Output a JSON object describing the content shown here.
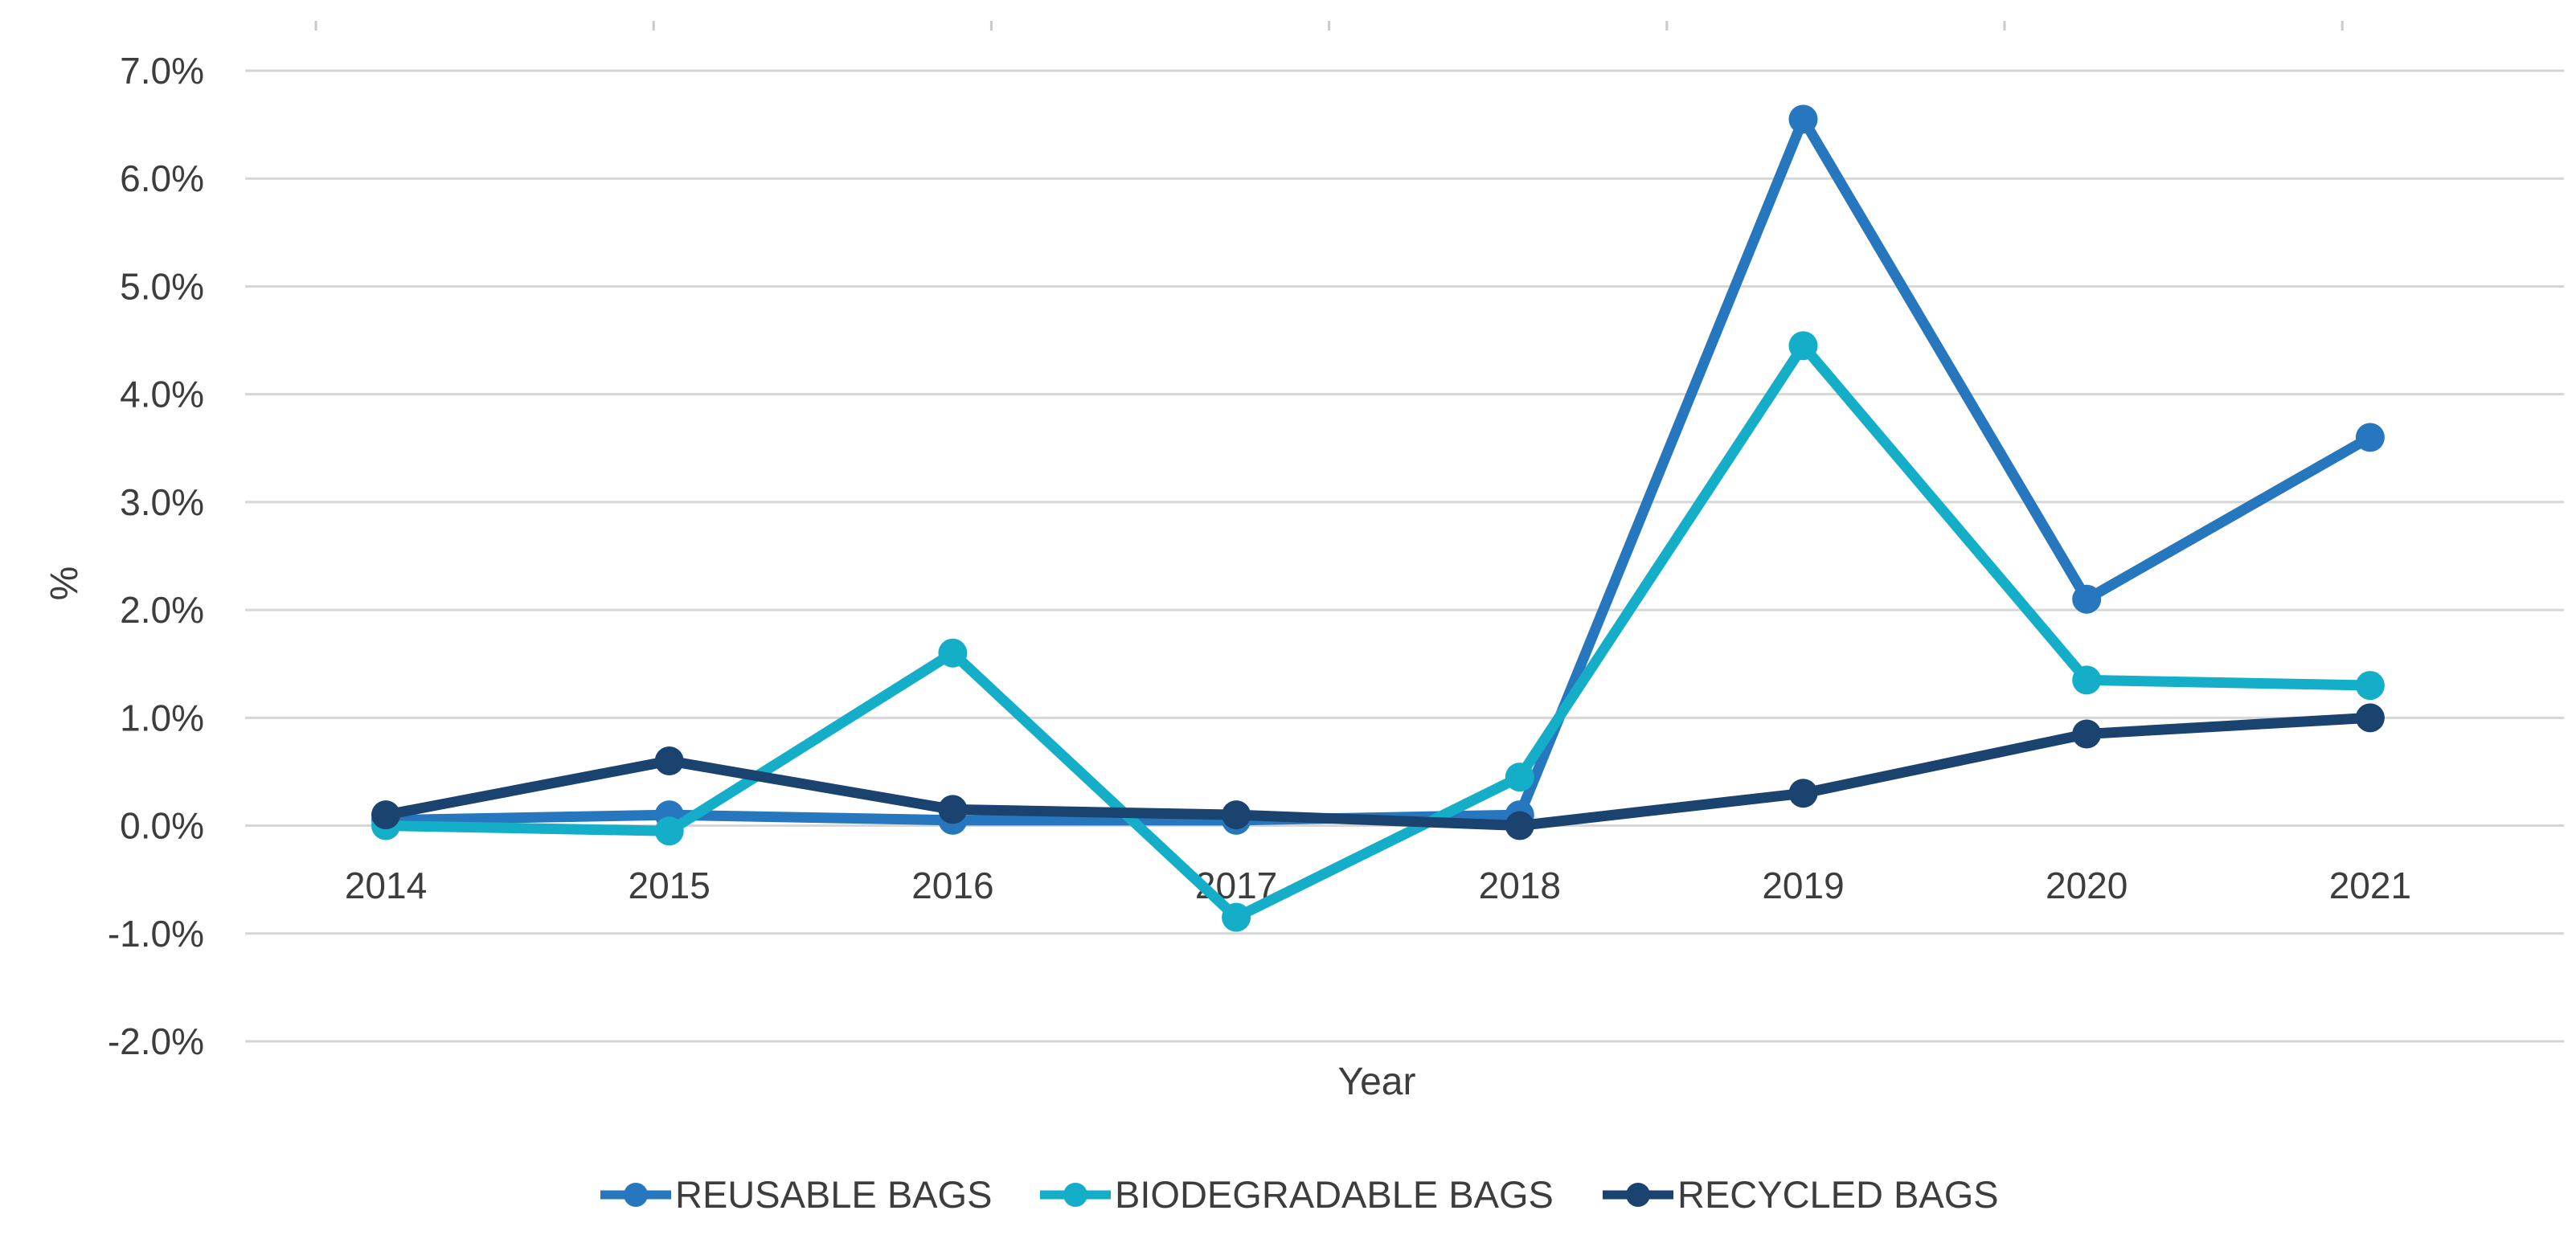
{
  "chart_data": {
    "type": "line",
    "title": "",
    "xlabel": "Year",
    "ylabel": "%",
    "x_categories": [
      "2014",
      "2015",
      "2016",
      "2017",
      "2018",
      "2019",
      "2020",
      "2021"
    ],
    "y_ticks": [
      {
        "label": "7.0%",
        "value": 7.0
      },
      {
        "label": "6.0%",
        "value": 6.0
      },
      {
        "label": "5.0%",
        "value": 5.0
      },
      {
        "label": "4.0%",
        "value": 4.0
      },
      {
        "label": "3.0%",
        "value": 3.0
      },
      {
        "label": "2.0%",
        "value": 2.0
      },
      {
        "label": "1.0%",
        "value": 1.0
      },
      {
        "label": "0.0%",
        "value": 0.0
      },
      {
        "label": "-1.0%",
        "value": -1.0
      },
      {
        "label": "-2.0%",
        "value": -2.0
      }
    ],
    "ylim": [
      -2.0,
      7.0
    ],
    "grid": true,
    "legend_position": "bottom",
    "marker": "circle",
    "series": [
      {
        "name": "REUSABLE BAGS",
        "color": "#2777BE",
        "values": [
          0.05,
          0.1,
          0.05,
          0.05,
          0.1,
          6.55,
          2.1,
          3.6
        ]
      },
      {
        "name": "BIODEGRADABLE BAGS",
        "color": "#15AEC9",
        "values": [
          0.0,
          -0.05,
          1.6,
          -0.85,
          0.45,
          4.45,
          1.35,
          1.3
        ]
      },
      {
        "name": "RECYCLED BAGS",
        "color": "#1B4370",
        "values": [
          0.1,
          0.6,
          0.15,
          0.1,
          0.0,
          0.3,
          0.85,
          1.0
        ]
      }
    ]
  },
  "colors": {
    "background": "#FFFFFF",
    "gridline": "#D6D6D6",
    "top_tick": "#C9C9C9",
    "axis_text": "#3D3D3D"
  }
}
